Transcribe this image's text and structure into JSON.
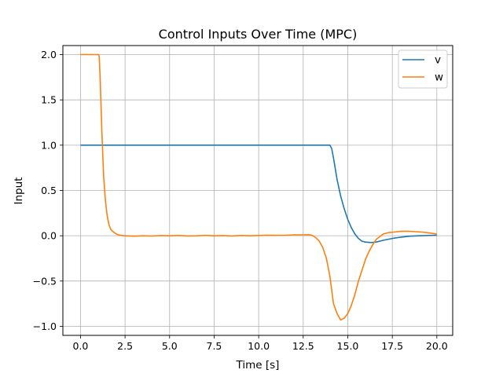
{
  "chart_data": {
    "type": "line",
    "title": "Control Inputs Over Time (MPC)",
    "xlabel": "Time [s]",
    "ylabel": "Input",
    "xlim": [
      -0.99,
      20.89
    ],
    "ylim": [
      -1.1,
      2.1
    ],
    "xticks": [
      0.0,
      2.5,
      5.0,
      7.5,
      10.0,
      12.5,
      15.0,
      17.5,
      20.0
    ],
    "xtick_labels": [
      "0.0",
      "2.5",
      "5.0",
      "7.5",
      "10.0",
      "12.5",
      "15.0",
      "17.5",
      "20.0"
    ],
    "yticks": [
      -1.0,
      -0.5,
      0.0,
      0.5,
      1.0,
      1.5,
      2.0
    ],
    "ytick_labels": [
      "−1.0",
      "−0.5",
      "0.0",
      "0.5",
      "1.0",
      "1.5",
      "2.0"
    ],
    "grid": true,
    "legend_position": "top-right",
    "series": [
      {
        "name": "v",
        "color": "#1f77b4",
        "x": [
          0.0,
          1.0,
          2.0,
          3.0,
          4.0,
          5.0,
          6.0,
          7.0,
          8.0,
          9.0,
          10.0,
          11.0,
          12.0,
          13.0,
          13.8,
          14.0,
          14.1,
          14.2,
          14.3,
          14.4,
          14.6,
          14.8,
          15.0,
          15.2,
          15.4,
          15.6,
          15.8,
          16.0,
          16.3,
          16.6,
          17.0,
          17.5,
          18.0,
          18.5,
          19.0,
          19.5,
          20.0
        ],
        "y": [
          1.0,
          1.0,
          1.0,
          1.0,
          1.0,
          1.0,
          1.0,
          1.0,
          1.0,
          1.0,
          1.0,
          1.0,
          1.0,
          1.0,
          1.0,
          1.0,
          0.96,
          0.86,
          0.74,
          0.62,
          0.44,
          0.3,
          0.18,
          0.09,
          0.02,
          -0.03,
          -0.06,
          -0.07,
          -0.075,
          -0.07,
          -0.05,
          -0.03,
          -0.015,
          -0.005,
          0.0,
          0.003,
          0.005
        ]
      },
      {
        "name": "w",
        "color": "#ff7f0e",
        "x": [
          0.0,
          0.5,
          1.0,
          1.05,
          1.1,
          1.2,
          1.3,
          1.4,
          1.5,
          1.6,
          1.7,
          1.8,
          2.0,
          2.2,
          2.5,
          3.0,
          3.5,
          4.0,
          4.5,
          5.0,
          5.5,
          6.0,
          6.5,
          7.0,
          7.5,
          8.0,
          8.5,
          9.0,
          9.5,
          10.0,
          10.5,
          11.0,
          11.5,
          12.0,
          12.5,
          12.8,
          13.0,
          13.2,
          13.4,
          13.6,
          13.8,
          14.0,
          14.2,
          14.4,
          14.6,
          14.8,
          15.0,
          15.2,
          15.4,
          15.6,
          15.8,
          16.0,
          16.2,
          16.4,
          16.6,
          16.8,
          17.0,
          17.3,
          17.6,
          18.0,
          18.4,
          18.8,
          19.2,
          19.6,
          20.0
        ],
        "y": [
          2.0,
          2.0,
          2.0,
          1.98,
          1.75,
          1.15,
          0.65,
          0.38,
          0.22,
          0.12,
          0.07,
          0.05,
          0.02,
          0.005,
          0.0,
          -0.005,
          0.0,
          -0.003,
          0.002,
          0.0,
          0.003,
          -0.002,
          0.0,
          0.004,
          0.0,
          0.002,
          -0.002,
          0.003,
          0.0,
          0.003,
          0.005,
          0.004,
          0.006,
          0.01,
          0.01,
          0.012,
          0.005,
          -0.02,
          -0.06,
          -0.13,
          -0.25,
          -0.45,
          -0.75,
          -0.86,
          -0.93,
          -0.91,
          -0.86,
          -0.77,
          -0.65,
          -0.5,
          -0.38,
          -0.26,
          -0.17,
          -0.1,
          -0.04,
          -0.01,
          0.02,
          0.035,
          0.04,
          0.05,
          0.05,
          0.045,
          0.04,
          0.03,
          0.02
        ]
      }
    ]
  }
}
